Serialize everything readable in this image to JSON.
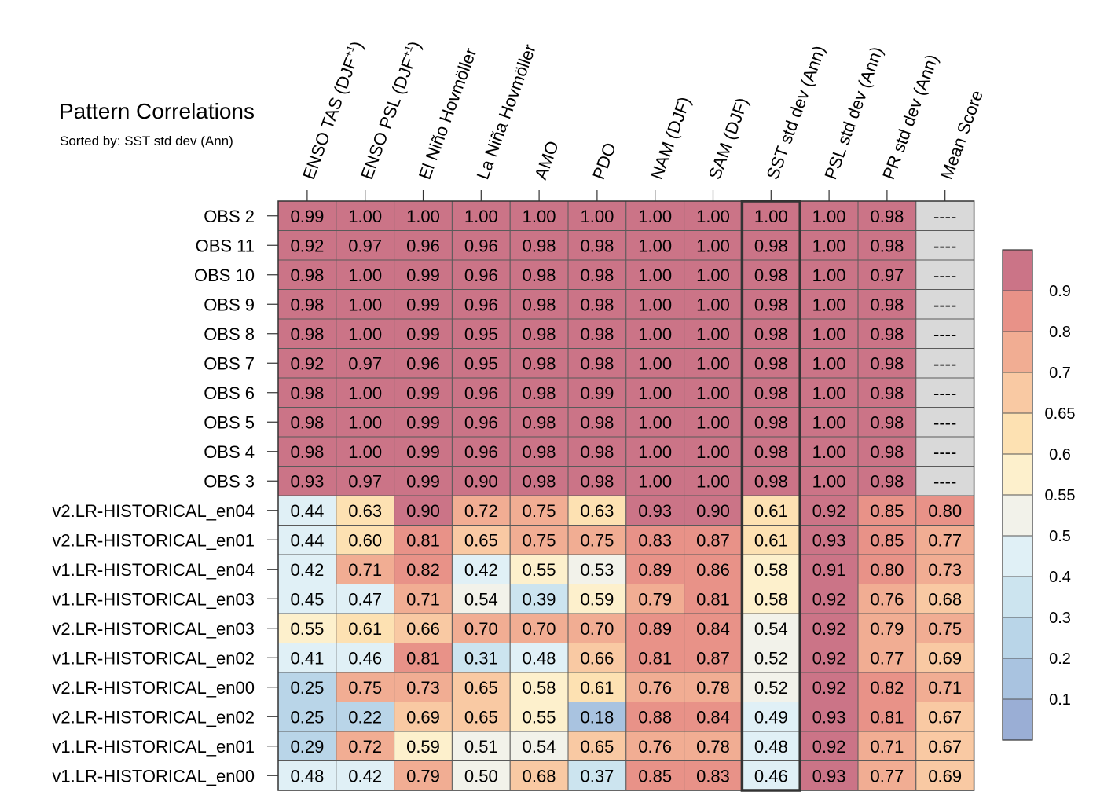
{
  "header": {
    "title": "Pattern Correlations",
    "subtitle": "Sorted by: SST std dev (Ann)"
  },
  "chart_data": {
    "type": "heatmap",
    "title": "Pattern Correlations",
    "subtitle": "Sorted by: SST std dev (Ann)",
    "columns": [
      {
        "label": "ENSO TAS (DJF",
        "sup": "+1",
        "suffix": ")"
      },
      {
        "label": "ENSO PSL (DJF",
        "sup": "+1",
        "suffix": ")"
      },
      {
        "label": "El Niño Hovmöller",
        "sup": "",
        "suffix": ""
      },
      {
        "label": "La Niña Hovmöller",
        "sup": "",
        "suffix": ""
      },
      {
        "label": "AMO",
        "sup": "",
        "suffix": ""
      },
      {
        "label": "PDO",
        "sup": "",
        "suffix": ""
      },
      {
        "label": "NAM (DJF)",
        "sup": "",
        "suffix": ""
      },
      {
        "label": "SAM (DJF)",
        "sup": "",
        "suffix": ""
      },
      {
        "label": "SST std dev (Ann)",
        "sup": "",
        "suffix": ""
      },
      {
        "label": "PSL std dev (Ann)",
        "sup": "",
        "suffix": ""
      },
      {
        "label": "PR std dev (Ann)",
        "sup": "",
        "suffix": ""
      },
      {
        "label": "Mean Score",
        "sup": "",
        "suffix": ""
      }
    ],
    "sorted_column": "SST std dev (Ann)",
    "rows": [
      "OBS 2",
      "OBS 11",
      "OBS 10",
      "OBS 9",
      "OBS 8",
      "OBS 7",
      "OBS 6",
      "OBS 5",
      "OBS 4",
      "OBS 3",
      "v2.LR-HISTORICAL_en04",
      "v2.LR-HISTORICAL_en01",
      "v1.LR-HISTORICAL_en04",
      "v1.LR-HISTORICAL_en03",
      "v2.LR-HISTORICAL_en03",
      "v1.LR-HISTORICAL_en02",
      "v2.LR-HISTORICAL_en00",
      "v2.LR-HISTORICAL_en02",
      "v1.LR-HISTORICAL_en01",
      "v1.LR-HISTORICAL_en00"
    ],
    "values": [
      [
        "0.99",
        "1.00",
        "1.00",
        "1.00",
        "1.00",
        "1.00",
        "1.00",
        "1.00",
        "1.00",
        "1.00",
        "0.98",
        "----"
      ],
      [
        "0.92",
        "0.97",
        "0.96",
        "0.96",
        "0.98",
        "0.98",
        "1.00",
        "1.00",
        "0.98",
        "1.00",
        "0.98",
        "----"
      ],
      [
        "0.98",
        "1.00",
        "0.99",
        "0.96",
        "0.98",
        "0.98",
        "1.00",
        "1.00",
        "0.98",
        "1.00",
        "0.97",
        "----"
      ],
      [
        "0.98",
        "1.00",
        "0.99",
        "0.96",
        "0.98",
        "0.98",
        "1.00",
        "1.00",
        "0.98",
        "1.00",
        "0.98",
        "----"
      ],
      [
        "0.98",
        "1.00",
        "0.99",
        "0.95",
        "0.98",
        "0.98",
        "1.00",
        "1.00",
        "0.98",
        "1.00",
        "0.98",
        "----"
      ],
      [
        "0.92",
        "0.97",
        "0.96",
        "0.95",
        "0.98",
        "0.98",
        "1.00",
        "1.00",
        "0.98",
        "1.00",
        "0.98",
        "----"
      ],
      [
        "0.98",
        "1.00",
        "0.99",
        "0.96",
        "0.98",
        "0.99",
        "1.00",
        "1.00",
        "0.98",
        "1.00",
        "0.98",
        "----"
      ],
      [
        "0.98",
        "1.00",
        "0.99",
        "0.96",
        "0.98",
        "0.98",
        "1.00",
        "1.00",
        "0.98",
        "1.00",
        "0.98",
        "----"
      ],
      [
        "0.98",
        "1.00",
        "0.99",
        "0.96",
        "0.98",
        "0.98",
        "1.00",
        "1.00",
        "0.98",
        "1.00",
        "0.98",
        "----"
      ],
      [
        "0.93",
        "0.97",
        "0.99",
        "0.90",
        "0.98",
        "0.98",
        "1.00",
        "1.00",
        "0.98",
        "1.00",
        "0.98",
        "----"
      ],
      [
        "0.44",
        "0.63",
        "0.90",
        "0.72",
        "0.75",
        "0.63",
        "0.93",
        "0.90",
        "0.61",
        "0.92",
        "0.85",
        "0.80"
      ],
      [
        "0.44",
        "0.60",
        "0.81",
        "0.65",
        "0.75",
        "0.75",
        "0.83",
        "0.87",
        "0.61",
        "0.93",
        "0.85",
        "0.77"
      ],
      [
        "0.42",
        "0.71",
        "0.82",
        "0.42",
        "0.55",
        "0.53",
        "0.89",
        "0.86",
        "0.58",
        "0.91",
        "0.80",
        "0.73"
      ],
      [
        "0.45",
        "0.47",
        "0.71",
        "0.54",
        "0.39",
        "0.59",
        "0.79",
        "0.81",
        "0.58",
        "0.92",
        "0.76",
        "0.68"
      ],
      [
        "0.55",
        "0.61",
        "0.66",
        "0.70",
        "0.70",
        "0.70",
        "0.89",
        "0.84",
        "0.54",
        "0.92",
        "0.79",
        "0.75"
      ],
      [
        "0.41",
        "0.46",
        "0.81",
        "0.31",
        "0.48",
        "0.66",
        "0.81",
        "0.87",
        "0.52",
        "0.92",
        "0.77",
        "0.69"
      ],
      [
        "0.25",
        "0.75",
        "0.73",
        "0.65",
        "0.58",
        "0.61",
        "0.76",
        "0.78",
        "0.52",
        "0.92",
        "0.82",
        "0.71"
      ],
      [
        "0.25",
        "0.22",
        "0.69",
        "0.65",
        "0.55",
        "0.18",
        "0.88",
        "0.84",
        "0.49",
        "0.93",
        "0.81",
        "0.67"
      ],
      [
        "0.29",
        "0.72",
        "0.59",
        "0.51",
        "0.54",
        "0.65",
        "0.76",
        "0.78",
        "0.48",
        "0.92",
        "0.71",
        "0.67"
      ],
      [
        "0.48",
        "0.42",
        "0.79",
        "0.50",
        "0.68",
        "0.37",
        "0.85",
        "0.83",
        "0.46",
        "0.93",
        "0.77",
        "0.69"
      ]
    ],
    "colorbar": {
      "colors": [
        "#cb7487",
        "#e89288",
        "#f1ad93",
        "#f9c9a3",
        "#fde1b2",
        "#fdf0cc",
        "#f2f2ea",
        "#e0f0f6",
        "#cce4ef",
        "#b9d5e8",
        "#a9c3e0",
        "#9aaed5"
      ],
      "tick_labels": [
        "0.9",
        "0.8",
        "0.7",
        "0.65",
        "0.6",
        "0.55",
        "0.5",
        "0.4",
        "0.3",
        "0.2",
        "0.1"
      ],
      "bounds": [
        0.9,
        0.8,
        0.7,
        0.65,
        0.6,
        0.55,
        0.5,
        0.4,
        0.3,
        0.2,
        0.1
      ],
      "missing_color": "#d9d9d9"
    }
  }
}
